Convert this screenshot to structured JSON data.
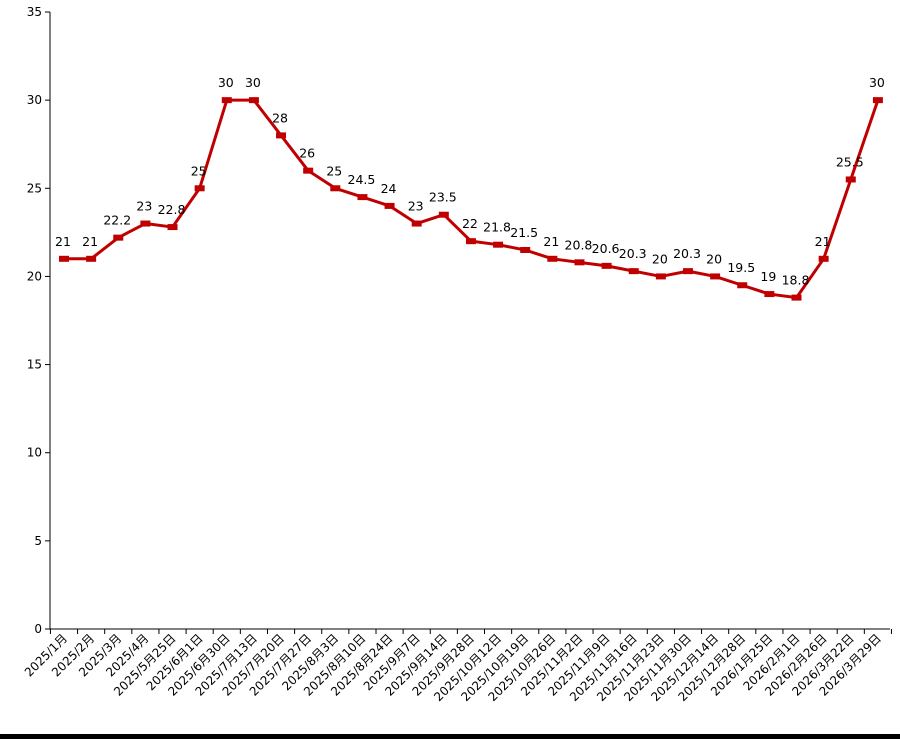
{
  "chart_data": {
    "type": "line",
    "title": "",
    "xlabel": "",
    "ylabel": "",
    "ylim": [
      0,
      35
    ],
    "yticks": [
      0,
      5,
      10,
      15,
      20,
      25,
      30,
      35
    ],
    "grid": false,
    "legend": "none",
    "colors": {
      "line": "#c00000",
      "drop_line": "#f4b183",
      "axis": "#000000"
    },
    "categories": [
      "2025/1月",
      "2025/2月",
      "2025/3月",
      "2025/4月",
      "2025/5月25日",
      "2025/6月1日",
      "2025/6月30日",
      "2025/7月13日",
      "2025/7月20日",
      "2025/7月27日",
      "2025/8月3日",
      "2025/8月10日",
      "2025/8月24日",
      "2025/9月7日",
      "2025/9月14日",
      "2025/9月28日",
      "2025/10月12日",
      "2025/10月19日",
      "2025/10月26日",
      "2025/11月2日",
      "2025/11月9日",
      "2025/11月16日",
      "2025/11月23日",
      "2025/11月30日",
      "2025/12月14日",
      "2025/12月28日",
      "2026/1月25日",
      "2026/2月1日",
      "2026/2月26日",
      "2026/3月22日",
      "2026/3月29日"
    ],
    "values": [
      21,
      21,
      22.2,
      23,
      22.8,
      25,
      30,
      30,
      28,
      26,
      25,
      24.5,
      24,
      23,
      23.5,
      22,
      21.8,
      21.5,
      21,
      20.8,
      20.6,
      20.3,
      20,
      20.3,
      20,
      19.5,
      19,
      18.8,
      21,
      25.5,
      30
    ],
    "data_labels": [
      "21",
      "21",
      "22.2",
      "23",
      "22.8",
      "25",
      "30",
      "30",
      "28",
      "26",
      "25",
      "24.5",
      "24",
      "23",
      "23.5",
      "22",
      "21.8",
      "21.5",
      "21",
      "20.8",
      "20.6",
      "20.3",
      "20",
      "20.3",
      "20",
      "19.5",
      "19",
      "18.8",
      "21",
      "25.5",
      "30"
    ]
  }
}
